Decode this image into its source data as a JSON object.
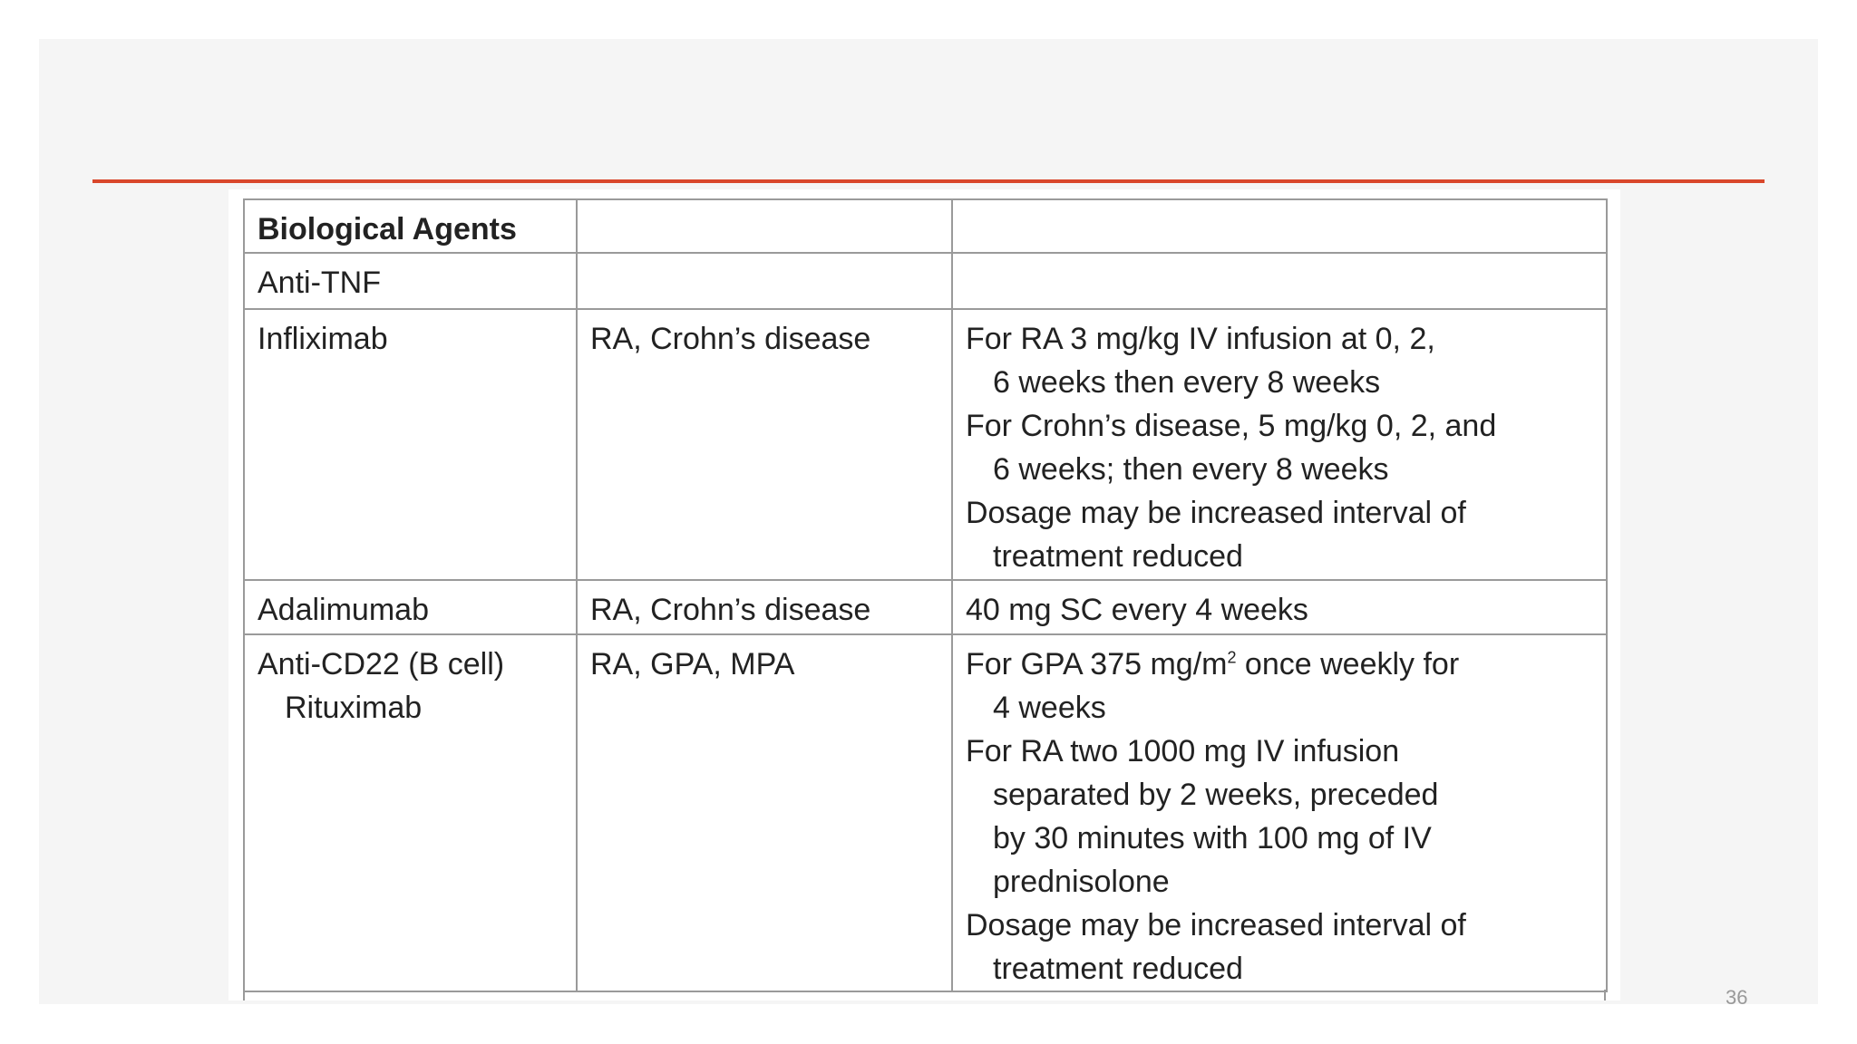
{
  "table": {
    "rows": [
      [
        [
          [
            "Biological Agents"
          ]
        ],
        null,
        null
      ],
      [
        [
          [
            "Anti-TNF"
          ]
        ],
        null,
        null
      ],
      [
        [
          [
            "Infliximab"
          ]
        ],
        [
          [
            "RA, Crohn’s disease"
          ]
        ],
        [
          [
            "For RA 3 mg/kg IV infusion at 0, 2,",
            "6 weeks then every 8 weeks"
          ],
          [
            "For Crohn’s disease, 5 mg/kg 0, 2, and",
            "6 weeks; then every 8 weeks"
          ],
          [
            "Dosage may be increased interval of",
            "treatment reduced"
          ]
        ]
      ],
      [
        [
          [
            "Adalimumab"
          ]
        ],
        [
          [
            "RA, Crohn’s disease"
          ]
        ],
        [
          [
            "40 mg SC every 4 weeks"
          ]
        ]
      ],
      [
        [
          [
            "Anti-CD22 (B cell)",
            "Rituximab"
          ]
        ],
        [
          [
            "RA, GPA, MPA"
          ]
        ],
        [
          [
            {
              "text": "For GPA 375 mg/m",
              "sup": "2",
              "rest": " once weekly for"
            },
            "4 weeks"
          ],
          [
            "For RA two 1000 mg IV infusion",
            "separated by 2 weeks, preceded",
            "by 30 minutes with 100 mg of IV",
            "prednisolone"
          ],
          [
            "Dosage may be increased interval of",
            "treatment reduced"
          ]
        ]
      ]
    ]
  },
  "page_number": "36"
}
